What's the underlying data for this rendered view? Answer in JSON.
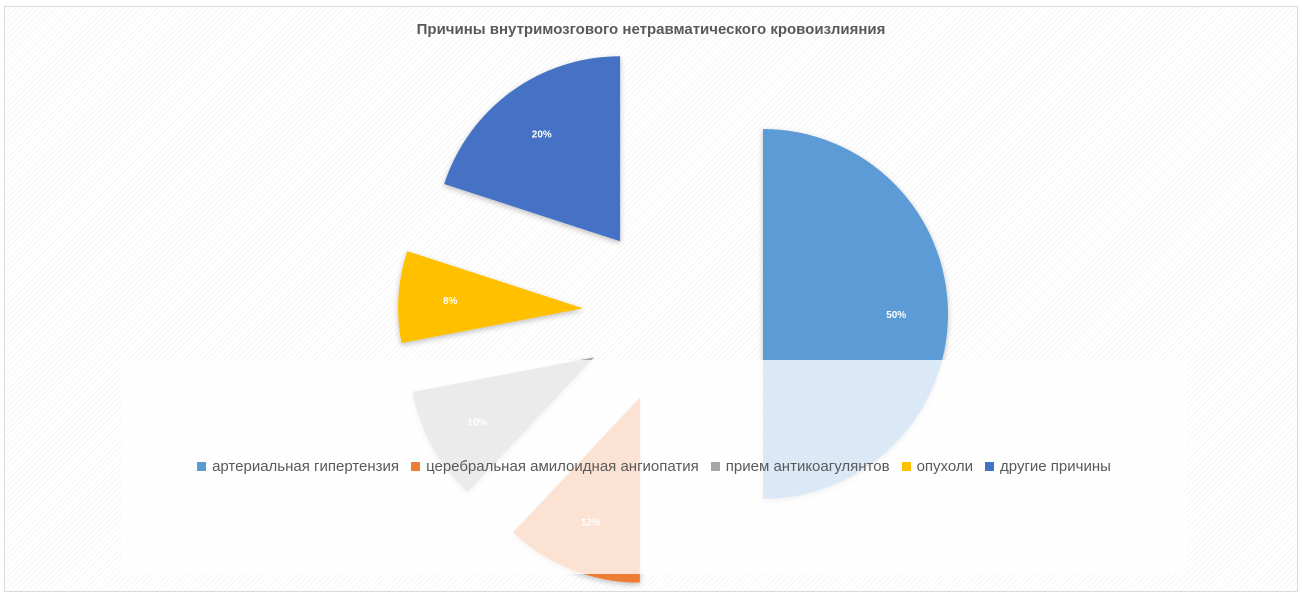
{
  "chart_data": {
    "type": "pie",
    "title": "Причины внутримозгового нетравматического кровоизлияния",
    "categories": [
      "артериальная гипертензия",
      "церебральная амилоидная ангиопатия",
      "прием антикоагулянтов",
      "опухоли",
      "другие причины"
    ],
    "values": [
      50,
      12,
      10,
      8,
      20
    ],
    "value_labels": [
      "50%",
      "12%",
      "10%",
      "8%",
      "20%"
    ],
    "colors": [
      "#5b9bd5",
      "#ed7d31",
      "#a5a5a5",
      "#ffc000",
      "#4472c4"
    ],
    "exploded": true,
    "legend_position": "bottom"
  }
}
